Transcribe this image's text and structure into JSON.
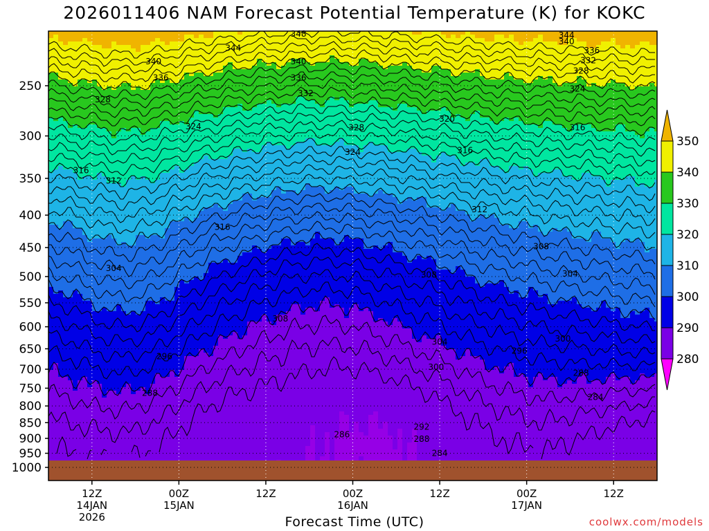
{
  "title": "2026011406 NAM Forecast Potential Temperature (K) for KOKC",
  "xlabel": "Forecast Time (UTC)",
  "credit": "coolwx.com/models",
  "chart_data": {
    "type": "heatmap",
    "title": "2026011406 NAM Forecast Potential Temperature (K) for KOKC",
    "xlabel": "Forecast Time (UTC)",
    "ylabel": "",
    "y_scale": "log-pressure",
    "y_ticks": [
      250,
      300,
      350,
      400,
      450,
      500,
      550,
      600,
      650,
      700,
      750,
      800,
      850,
      900,
      950,
      1000
    ],
    "ylim": [
      200,
      1000
    ],
    "x_range_hours": [
      6,
      90
    ],
    "x_ticks": [
      {
        "hour": 12,
        "lines": [
          "12Z",
          "14JAN",
          "2026"
        ]
      },
      {
        "hour": 24,
        "lines": [
          "00Z",
          "15JAN"
        ]
      },
      {
        "hour": 36,
        "lines": [
          "12Z"
        ]
      },
      {
        "hour": 48,
        "lines": [
          "00Z",
          "16JAN"
        ]
      },
      {
        "hour": 60,
        "lines": [
          "12Z"
        ]
      },
      {
        "hour": 72,
        "lines": [
          "00Z",
          "17JAN"
        ]
      },
      {
        "hour": 84,
        "lines": [
          "12Z"
        ]
      }
    ],
    "grid": true,
    "legend_position": "right",
    "colorbar": {
      "levels": [
        280,
        290,
        300,
        310,
        320,
        330,
        340,
        350
      ],
      "colors": [
        "#ff00ff",
        "#9600e6",
        "#7a00e6",
        "#0000e6",
        "#1e6ee6",
        "#1eb4e6",
        "#00e6a0",
        "#28c81e",
        "#f0f000",
        "#f0b400"
      ]
    },
    "ground_color": "#a0522d",
    "contour_interval": 2,
    "contour_levels": [
      284,
      286,
      288,
      290,
      292,
      294,
      296,
      298,
      300,
      302,
      304,
      306,
      308,
      310,
      312,
      314,
      316,
      318,
      320,
      322,
      324,
      326,
      328,
      330,
      332,
      334,
      336,
      338,
      340,
      342,
      344,
      346,
      348
    ],
    "contour_labels": [
      {
        "value": 348,
        "hour": 40.5,
        "p": 207
      },
      {
        "value": 344,
        "hour": 31.5,
        "p": 218
      },
      {
        "value": 344,
        "hour": 77.5,
        "p": 208
      },
      {
        "value": 340,
        "hour": 20.5,
        "p": 229
      },
      {
        "value": 340,
        "hour": 40.5,
        "p": 229
      },
      {
        "value": 340,
        "hour": 77.5,
        "p": 213
      },
      {
        "value": 336,
        "hour": 21.5,
        "p": 243
      },
      {
        "value": 336,
        "hour": 40.5,
        "p": 243
      },
      {
        "value": 336,
        "hour": 81,
        "p": 220
      },
      {
        "value": 332,
        "hour": 41.5,
        "p": 257
      },
      {
        "value": 332,
        "hour": 80.5,
        "p": 228
      },
      {
        "value": 328,
        "hour": 13.5,
        "p": 263
      },
      {
        "value": 328,
        "hour": 48.5,
        "p": 291
      },
      {
        "value": 328,
        "hour": 79.5,
        "p": 237
      },
      {
        "value": 324,
        "hour": 26,
        "p": 290
      },
      {
        "value": 324,
        "hour": 48,
        "p": 318
      },
      {
        "value": 324,
        "hour": 79,
        "p": 253
      },
      {
        "value": 320,
        "hour": 61,
        "p": 282
      },
      {
        "value": 316,
        "hour": 10.5,
        "p": 340
      },
      {
        "value": 316,
        "hour": 63.5,
        "p": 316
      },
      {
        "value": 316,
        "hour": 30,
        "p": 418
      },
      {
        "value": 316,
        "hour": 79,
        "p": 291
      },
      {
        "value": 312,
        "hour": 15,
        "p": 353
      },
      {
        "value": 312,
        "hour": 65.5,
        "p": 392
      },
      {
        "value": 308,
        "hour": 74,
        "p": 448
      },
      {
        "value": 308,
        "hour": 58.5,
        "p": 497
      },
      {
        "value": 308,
        "hour": 38,
        "p": 583
      },
      {
        "value": 304,
        "hour": 15,
        "p": 485
      },
      {
        "value": 304,
        "hour": 78,
        "p": 495
      },
      {
        "value": 304,
        "hour": 60,
        "p": 634
      },
      {
        "value": 300,
        "hour": 59.5,
        "p": 695
      },
      {
        "value": 300,
        "hour": 77,
        "p": 627
      },
      {
        "value": 296,
        "hour": 22,
        "p": 668
      },
      {
        "value": 296,
        "hour": 71,
        "p": 655
      },
      {
        "value": 292,
        "hour": 57.5,
        "p": 863
      },
      {
        "value": 288,
        "hour": 20,
        "p": 763
      },
      {
        "value": 288,
        "hour": 57.5,
        "p": 902
      },
      {
        "value": 288,
        "hour": 79.5,
        "p": 710
      },
      {
        "value": 286,
        "hour": 46.5,
        "p": 888
      },
      {
        "value": 284,
        "hour": 60,
        "p": 950
      },
      {
        "value": 284,
        "hour": 81.5,
        "p": 775
      }
    ]
  }
}
